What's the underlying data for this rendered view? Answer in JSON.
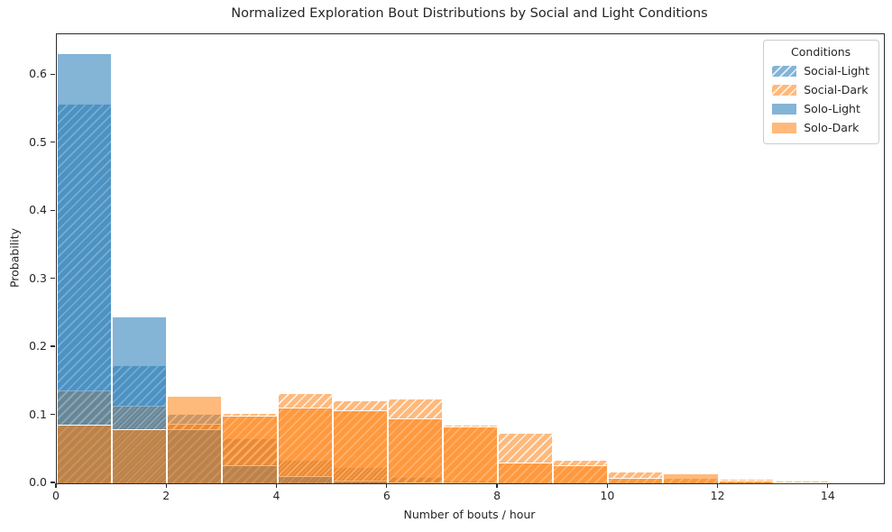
{
  "figure": {
    "title": "Normalized Exploration Bout Distributions by Social and Light Conditions",
    "xlabel": "Number of bouts / hour",
    "ylabel": "Probability"
  },
  "legend": {
    "title": "Conditions",
    "entries": [
      {
        "label": "Social-Light",
        "color": "#1f77b4",
        "hatched": true
      },
      {
        "label": "Social-Dark",
        "color": "#ff7f0e",
        "hatched": true
      },
      {
        "label": "Solo-Light",
        "color": "#1f77b4",
        "hatched": false
      },
      {
        "label": "Solo-Dark",
        "color": "#ff7f0e",
        "hatched": false
      }
    ]
  },
  "chart_data": {
    "type": "bar",
    "subtype": "overlaid_histogram_density",
    "title": "Normalized Exploration Bout Distributions by Social and Light Conditions",
    "xlabel": "Number of bouts / hour",
    "ylabel": "Probability",
    "grid": false,
    "legend_position": "upper right",
    "alpha": 0.55,
    "bin_edges": [
      0,
      1,
      2,
      3,
      4,
      5,
      6,
      7,
      8,
      9,
      10,
      11,
      12,
      13,
      14,
      15
    ],
    "xlim": [
      0,
      15
    ],
    "ylim": [
      0,
      0.66
    ],
    "x_ticks": [
      0,
      2,
      4,
      6,
      8,
      10,
      12,
      14
    ],
    "y_ticks": [
      0.0,
      0.1,
      0.2,
      0.3,
      0.4,
      0.5,
      0.6
    ],
    "series": [
      {
        "name": "Social-Light",
        "color": "#1f77b4",
        "hatch": "/",
        "values": [
          0.558,
          0.174,
          0.102,
          0.066,
          0.035,
          0.024,
          0.009,
          0.004,
          0.002,
          0.001,
          0,
          0,
          0,
          0,
          0
        ]
      },
      {
        "name": "Social-Dark",
        "color": "#ff7f0e",
        "hatch": "/",
        "values": [
          0.137,
          0.114,
          0.088,
          0.104,
          0.132,
          0.122,
          0.124,
          0.086,
          0.074,
          0.034,
          0.017,
          0.008,
          0.006,
          0.004,
          0.002
        ]
      },
      {
        "name": "Solo-Light",
        "color": "#1f77b4",
        "hatch": null,
        "values": [
          0.632,
          0.245,
          0.079,
          0.027,
          0.011,
          0.004,
          0.001,
          0.001,
          0,
          0,
          0,
          0,
          0,
          0,
          0
        ]
      },
      {
        "name": "Solo-Dark",
        "color": "#ff7f0e",
        "hatch": null,
        "values": [
          0.086,
          0.079,
          0.128,
          0.1,
          0.112,
          0.108,
          0.096,
          0.084,
          0.031,
          0.027,
          0.008,
          0.015,
          0.004,
          0.002,
          0.001
        ]
      }
    ]
  }
}
